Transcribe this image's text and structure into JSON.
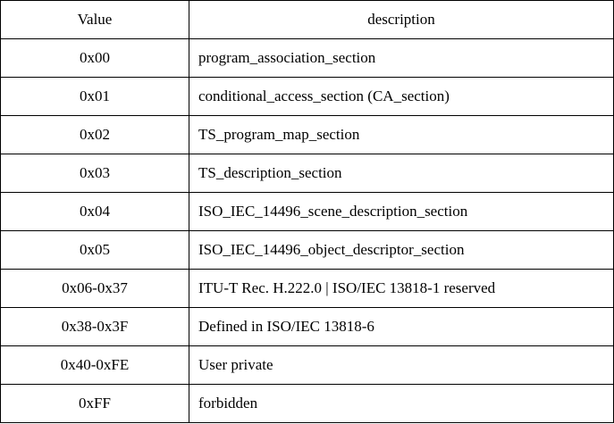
{
  "table": {
    "headers": {
      "value": "Value",
      "description": "description"
    },
    "rows": [
      {
        "value": "0x00",
        "description": "program_association_section"
      },
      {
        "value": "0x01",
        "description": "conditional_access_section (CA_section)"
      },
      {
        "value": "0x02",
        "description": "TS_program_map_section"
      },
      {
        "value": "0x03",
        "description": "TS_description_section"
      },
      {
        "value": "0x04",
        "description": "ISO_IEC_14496_scene_description_section"
      },
      {
        "value": "0x05",
        "description": "ISO_IEC_14496_object_descriptor_section"
      },
      {
        "value": "0x06-0x37",
        "description": "ITU-T Rec. H.222.0 | ISO/IEC 13818-1 reserved"
      },
      {
        "value": "0x38-0x3F",
        "description": "Defined in ISO/IEC 13818-6"
      },
      {
        "value": "0x40-0xFE",
        "description": "User private"
      },
      {
        "value": "0xFF",
        "description": "forbidden"
      }
    ]
  }
}
